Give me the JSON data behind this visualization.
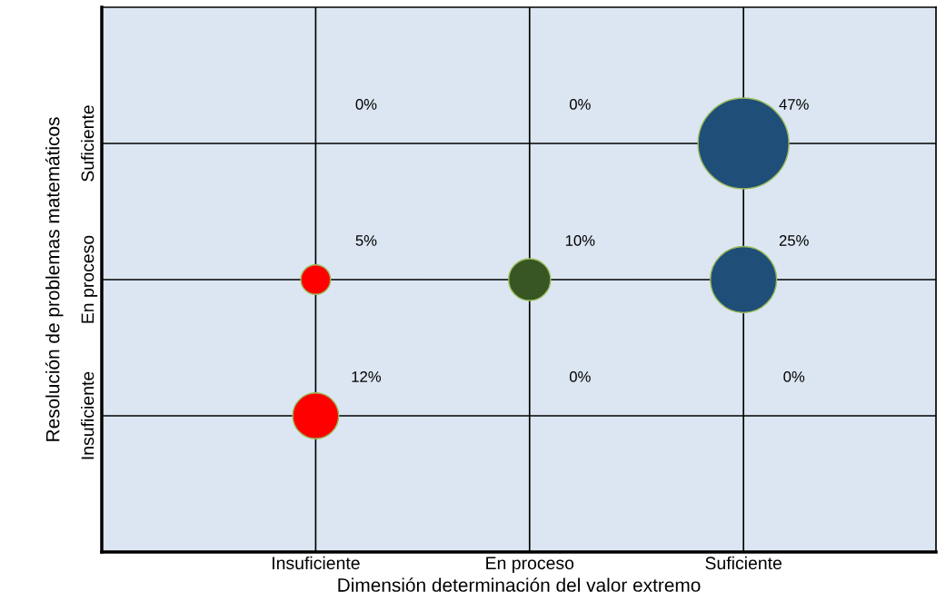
{
  "chart_data": {
    "type": "heatmap",
    "xlabel": "Dimensión determinación del valor extremo",
    "ylabel": "Resolución de problemas matemáticos",
    "categories": [
      "Insuficiente",
      "En proceso",
      "Suficiente"
    ],
    "y_categories": [
      "Suficiente",
      "En proceso",
      "Insuficiente"
    ],
    "cells": [
      [
        0,
        0,
        47
      ],
      [
        5,
        10,
        25
      ],
      [
        12,
        0,
        0
      ]
    ],
    "cell_labels": [
      [
        "0%",
        "0%",
        "47%"
      ],
      [
        "5%",
        "10%",
        "25%"
      ],
      [
        "12%",
        "0%",
        "0%"
      ]
    ],
    "colors": [
      "#ff0000",
      "#375623",
      "#1f4e79"
    ],
    "grid": true
  }
}
